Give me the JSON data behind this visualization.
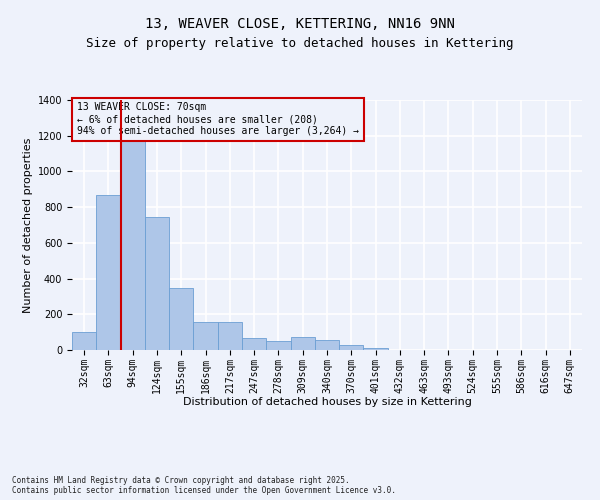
{
  "title": "13, WEAVER CLOSE, KETTERING, NN16 9NN",
  "subtitle": "Size of property relative to detached houses in Kettering",
  "xlabel": "Distribution of detached houses by size in Kettering",
  "ylabel": "Number of detached properties",
  "categories": [
    "32sqm",
    "63sqm",
    "94sqm",
    "124sqm",
    "155sqm",
    "186sqm",
    "217sqm",
    "247sqm",
    "278sqm",
    "309sqm",
    "340sqm",
    "370sqm",
    "401sqm",
    "432sqm",
    "463sqm",
    "493sqm",
    "524sqm",
    "555sqm",
    "586sqm",
    "616sqm",
    "647sqm"
  ],
  "values": [
    100,
    870,
    1170,
    745,
    345,
    155,
    155,
    70,
    50,
    75,
    55,
    30,
    10,
    0,
    0,
    0,
    0,
    0,
    0,
    0,
    0
  ],
  "bar_color": "#aec6e8",
  "bar_edge_color": "#6b9fd4",
  "vline_x_index": 1,
  "vline_color": "#cc0000",
  "ylim": [
    0,
    1400
  ],
  "yticks": [
    0,
    200,
    400,
    600,
    800,
    1000,
    1200,
    1400
  ],
  "annotation_box_text": "13 WEAVER CLOSE: 70sqm\n← 6% of detached houses are smaller (208)\n94% of semi-detached houses are larger (3,264) →",
  "box_edge_color": "#cc0000",
  "footnote": "Contains HM Land Registry data © Crown copyright and database right 2025.\nContains public sector information licensed under the Open Government Licence v3.0.",
  "bg_color": "#eef2fb",
  "grid_color": "#ffffff",
  "title_fontsize": 10,
  "subtitle_fontsize": 9,
  "axis_label_fontsize": 8,
  "tick_fontsize": 7,
  "annot_fontsize": 7
}
